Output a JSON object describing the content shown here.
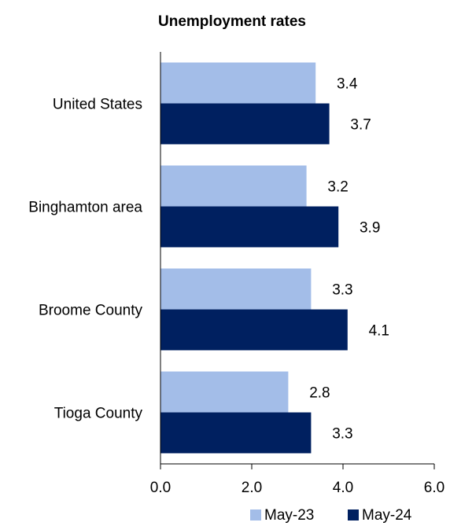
{
  "chart_data": {
    "type": "bar",
    "orientation": "horizontal",
    "title": "Unemployment rates",
    "categories": [
      "United States",
      "Binghamton area",
      "Broome County",
      "Tioga County"
    ],
    "series": [
      {
        "name": "May-23",
        "values": [
          3.4,
          3.2,
          3.3,
          2.8
        ],
        "color": "#a3bde8"
      },
      {
        "name": "May-24",
        "values": [
          3.7,
          3.9,
          4.1,
          3.3
        ],
        "color": "#002060"
      }
    ],
    "xlim": [
      0,
      6
    ],
    "xticks": [
      "0.0",
      "2.0",
      "4.0",
      "6.0"
    ],
    "grid": false,
    "legend_position": "bottom-right"
  }
}
